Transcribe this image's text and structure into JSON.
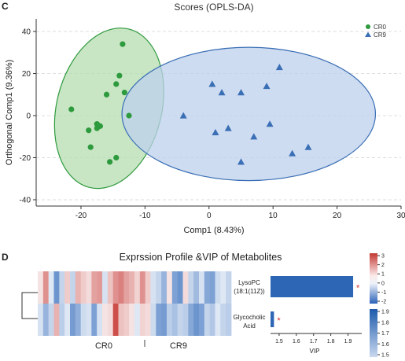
{
  "panels": {
    "c_label": "C",
    "d_label": "D"
  },
  "chart_data": [
    {
      "type": "scatter",
      "title": "Scores (OPLS-DA)",
      "xlabel": "Comp1 (8.43%)",
      "ylabel": "Orthogonal Comp1 (9.36%)",
      "xlim": [
        -27,
        30
      ],
      "ylim": [
        -43,
        46
      ],
      "xticks": [
        -20,
        -10,
        0,
        10,
        20,
        30
      ],
      "yticks": [
        -40,
        -20,
        0,
        20,
        40
      ],
      "grid": "dashed horizontal",
      "legend_position": "top-right",
      "series": [
        {
          "name": "CR0",
          "marker": "circle",
          "color": "#2e9a3e",
          "fill": "#b5ddb0",
          "ellipse": {
            "cx": -15.6,
            "cy": 3.5,
            "rx": 8.2,
            "ry": 38.8,
            "angle_deg": 14
          },
          "points": [
            [
              -13.5,
              34
            ],
            [
              -14,
              19
            ],
            [
              -13.2,
              11
            ],
            [
              -16,
              10
            ],
            [
              -14.5,
              15
            ],
            [
              -12.5,
              0
            ],
            [
              -21.5,
              3
            ],
            [
              -17.5,
              -4
            ],
            [
              -17,
              -5
            ],
            [
              -17.5,
              -6
            ],
            [
              -18.8,
              -7
            ],
            [
              -17.5,
              -4
            ],
            [
              -18.5,
              -15
            ],
            [
              -15.5,
              -22
            ],
            [
              -14.5,
              -20
            ]
          ]
        },
        {
          "name": "CR9",
          "marker": "triangle",
          "color": "#3a6fb5",
          "fill": "#bdd0ec",
          "ellipse": {
            "cx": 6.2,
            "cy": 0.8,
            "rx": 19.8,
            "ry": 31.7,
            "angle_deg": 0
          },
          "points": [
            [
              11,
              23
            ],
            [
              0.5,
              15
            ],
            [
              2,
              11
            ],
            [
              5,
              11
            ],
            [
              9,
              14
            ],
            [
              -4,
              0
            ],
            [
              9.5,
              -4
            ],
            [
              1,
              -8
            ],
            [
              3,
              -6
            ],
            [
              7,
              -10
            ],
            [
              13,
              -18
            ],
            [
              15.5,
              -15
            ],
            [
              5,
              -22
            ]
          ]
        }
      ]
    },
    {
      "type": "heatmap",
      "title": "Exprssion Profile &VIP of Metabolites",
      "group_labels": [
        "CR0",
        "CR9"
      ],
      "row_labels": [
        [
          "LysoPC",
          "(18:1(11Z))"
        ],
        [
          "Glycocholic",
          "Acid"
        ]
      ],
      "rows": [
        [
          0.2,
          1.2,
          -0.2,
          -1.5,
          -0.5,
          0.5,
          -0.5,
          0.8,
          0.5,
          0.3,
          1.0,
          1.1,
          -0.3,
          0.6,
          1.2,
          1.4,
          1.0,
          0.8,
          0.4,
          1.2,
          0.5,
          -0.3,
          -0.5,
          -1.0,
          0.2,
          -1.3,
          -1.5,
          0.3,
          -0.5,
          -0.9,
          -0.3,
          -1.2,
          -1.3,
          -0.4,
          -0.2,
          -0.5
        ],
        [
          -0.3,
          -1.0,
          -0.5,
          0.8,
          -0.6,
          -0.2,
          -1.4,
          -1.1,
          -0.4,
          -0.3,
          -1.3,
          -0.3,
          0.2,
          0.3,
          2.0,
          0.6,
          0.5,
          0.2,
          -0.2,
          0.4,
          0.3,
          -0.4,
          -1.3,
          -1.4,
          -0.6,
          -0.8,
          -0.5,
          -0.6,
          -1.2,
          -1.5,
          -1.3,
          -0.5,
          -0.7,
          -0.2,
          -0.5,
          -0.6
        ]
      ],
      "colorbar": {
        "ticks": [
          3,
          2,
          1,
          0,
          -1,
          -2
        ]
      },
      "vip": {
        "xlabel": "VIP",
        "xlim": [
          1.45,
          1.98
        ],
        "xticks": [
          1.5,
          1.6,
          1.7,
          1.8,
          1.9
        ],
        "values": [
          1.93,
          1.47
        ],
        "significance": [
          "*",
          "*"
        ],
        "colorbar": {
          "ticks": [
            1.9,
            1.8,
            1.7,
            1.6,
            1.5
          ]
        }
      }
    }
  ]
}
